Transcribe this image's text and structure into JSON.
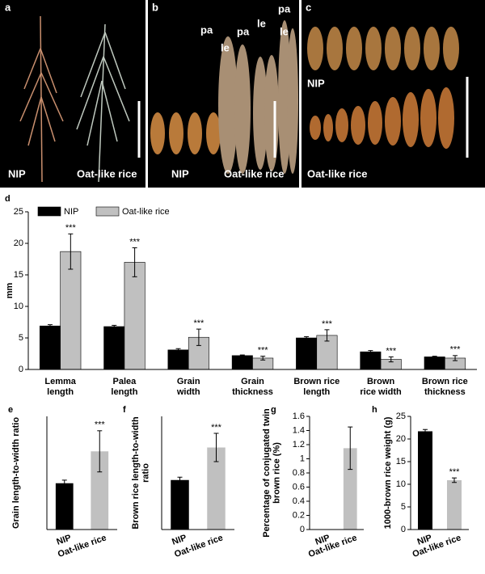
{
  "photos": {
    "a": {
      "label": "a",
      "texts": [
        "NIP",
        "Oat-like rice"
      ]
    },
    "b": {
      "label": "b",
      "texts": [
        "NIP",
        "Oat-like rice"
      ],
      "parts": [
        "pa",
        "le",
        "pa",
        "le",
        "pa",
        "le"
      ]
    },
    "c": {
      "label": "c",
      "texts": [
        "NIP",
        "Oat-like rice"
      ]
    }
  },
  "chart_data": [
    {
      "type": "grouped_bar",
      "label": "d",
      "y_label": "mm",
      "categories": [
        "Lemma\nlength",
        "Palea\nlength",
        "Grain\nwidth",
        "Grain\nthickness",
        "Brown rice\nlength",
        "Brown\nrice  width",
        "Brown rice\nthickness"
      ],
      "series": [
        {
          "name": "NIP",
          "color": "#000000",
          "values": [
            6.9,
            6.8,
            3.1,
            2.2,
            5.0,
            2.8,
            2.0
          ],
          "errors": [
            0.2,
            0.2,
            0.2,
            0.1,
            0.2,
            0.2,
            0.1
          ]
        },
        {
          "name": "Oat-like rice",
          "color": "#c0c0c0",
          "values": [
            18.7,
            17.0,
            5.1,
            1.8,
            5.4,
            1.6,
            1.8
          ],
          "errors": [
            2.8,
            2.3,
            1.3,
            0.3,
            0.9,
            0.4,
            0.4
          ],
          "significance": [
            "***",
            "***",
            "***",
            "***",
            "***",
            "***",
            "***"
          ]
        }
      ],
      "ylim": [
        0,
        25
      ],
      "yticks": [
        0,
        5,
        10,
        15,
        20,
        25
      ]
    },
    {
      "type": "bar",
      "label": "e",
      "y_label": "Grain length-to-width ratio",
      "categories": [
        "NIP",
        "Oat-like rice"
      ],
      "values": [
        2.25,
        3.8
      ],
      "errors": [
        0.15,
        1.0
      ],
      "colors": [
        "#000000",
        "#c0c0c0"
      ],
      "significance": [
        null,
        "***"
      ],
      "ylim": [
        0,
        5.5
      ]
    },
    {
      "type": "bar",
      "label": "f",
      "y_label": "Brown rice length-to-width\nratio",
      "categories": [
        "NIP",
        "Oat-like rice"
      ],
      "values": [
        1.75,
        2.9
      ],
      "errors": [
        0.1,
        0.5
      ],
      "colors": [
        "#000000",
        "#c0c0c0"
      ],
      "significance": [
        null,
        "***"
      ],
      "ylim": [
        0,
        4
      ]
    },
    {
      "type": "bar",
      "label": "g",
      "y_label": "Percentage of conjugated twin\nbrown rice (%)",
      "categories": [
        "NIP",
        "Oat-like rice"
      ],
      "values": [
        0,
        1.15
      ],
      "errors": [
        0,
        0.3
      ],
      "colors": [
        "#000000",
        "#c0c0c0"
      ],
      "ylim": [
        0,
        1.6
      ],
      "yticks": [
        0,
        0.2,
        0.4,
        0.6,
        0.8,
        1,
        1.2,
        1.4,
        1.6
      ]
    },
    {
      "type": "bar",
      "label": "h",
      "y_label": "1000-brown rice  weight (g)",
      "categories": [
        "NIP",
        "Oat-like rice"
      ],
      "values": [
        21.7,
        10.9
      ],
      "errors": [
        0.4,
        0.5
      ],
      "colors": [
        "#000000",
        "#c0c0c0"
      ],
      "significance": [
        null,
        "***"
      ],
      "ylim": [
        0,
        25
      ],
      "yticks": [
        0,
        5,
        10,
        15,
        20,
        25
      ]
    }
  ]
}
